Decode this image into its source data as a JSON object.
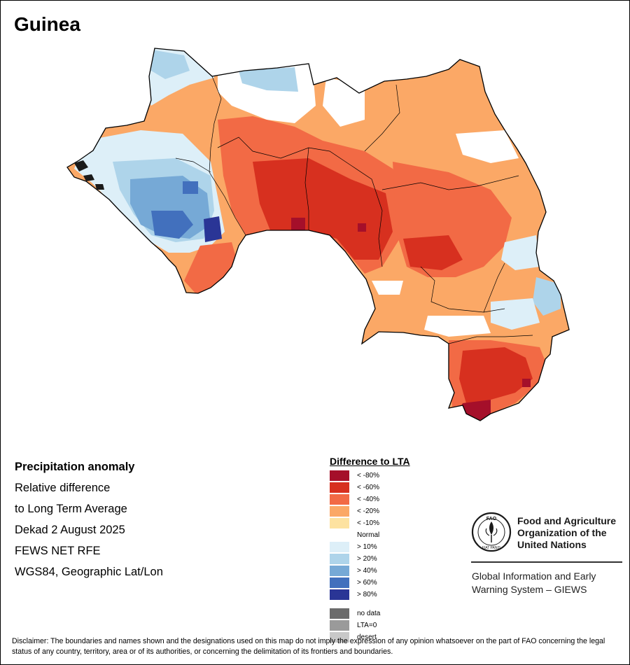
{
  "title": "Guinea",
  "info": {
    "heading": "Precipitation anomaly",
    "lines": [
      "Relative difference",
      "to Long Term Average",
      "Dekad 2 August 2025",
      "FEWS NET RFE",
      "WGS84, Geographic Lat/Lon"
    ]
  },
  "legend": {
    "title": "Difference to LTA",
    "items": [
      {
        "label": "< -80%",
        "color": "#a50f2a"
      },
      {
        "label": "< -60%",
        "color": "#d7301f"
      },
      {
        "label": "< -40%",
        "color": "#f26a45"
      },
      {
        "label": "< -20%",
        "color": "#fba866"
      },
      {
        "label": "< -10%",
        "color": "#fde2a0"
      },
      {
        "label": "Normal",
        "color": "#ffffff"
      },
      {
        "label": "> 10%",
        "color": "#ddeff8"
      },
      {
        "label": "> 20%",
        "color": "#aed4ea"
      },
      {
        "label": "> 40%",
        "color": "#76a9d6"
      },
      {
        "label": "> 60%",
        "color": "#4270bd"
      },
      {
        "label": "> 80%",
        "color": "#2a3596"
      }
    ],
    "extra": [
      {
        "label": "no data",
        "color": "#6b6b6b"
      },
      {
        "label": "LTA=0",
        "color": "#9a9a9a"
      },
      {
        "label": "desert",
        "color": "#c8c8c8"
      }
    ]
  },
  "organization": {
    "logo_icon": "fao-logo-icon",
    "name_lines": [
      "Food and Agriculture",
      "Organization of the",
      "United Nations"
    ],
    "logo_motto": "FIAT PANIS",
    "logo_letters": "FAO",
    "system_lines": [
      "Global Information and Early",
      "Warning System – GIEWS"
    ]
  },
  "disclaimer": "Disclaimer: The boundaries and names shown and the designations used on this map do not imply the expression of any opinion whatsoever on the part of FAO concerning the legal status of any country, territory, area or of its authorities, or concerning the delimitation of its frontiers and boundaries."
}
